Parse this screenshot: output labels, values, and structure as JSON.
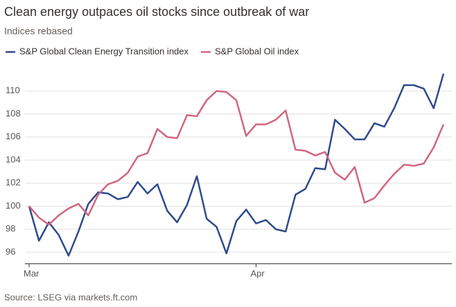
{
  "chart_data": {
    "type": "line",
    "title": "Clean energy outpaces oil stocks since outbreak of war",
    "subtitle": "Indices rebased",
    "source": "Source: LSEG via markets.ft.com",
    "categories": [
      "Mar",
      null,
      null,
      null,
      null,
      null,
      null,
      null,
      null,
      null,
      null,
      null,
      null,
      null,
      null,
      null,
      null,
      null,
      null,
      null,
      null,
      null,
      null,
      "Apr",
      null,
      null,
      null,
      null,
      null,
      null,
      null,
      null,
      null,
      null,
      null,
      null,
      null,
      null,
      null,
      null,
      null,
      null,
      null
    ],
    "series": [
      {
        "name": "S&P Global Clean Energy Transition index",
        "color": "#2e4a8c",
        "values": [
          100,
          97,
          98.6,
          97.5,
          95.7,
          97.8,
          100.2,
          101.2,
          101.1,
          100.6,
          100.8,
          102.1,
          101.1,
          101.9,
          99.6,
          98.6,
          100.1,
          102.6,
          98.9,
          98.2,
          95.9,
          98.7,
          99.7,
          98.5,
          98.8,
          98,
          97.8,
          101,
          101.5,
          103.3,
          103.2,
          107.5,
          106.7,
          105.8,
          105.8,
          107.2,
          106.9,
          108.5,
          110.5,
          110.5,
          110.2,
          108.5,
          111.5
        ]
      },
      {
        "name": "S&P Global Oil index",
        "color": "#d0667f",
        "values": [
          100,
          99,
          98.4,
          99.2,
          99.8,
          100.2,
          99.2,
          101,
          101.9,
          102.2,
          102.9,
          104.3,
          104.6,
          106.7,
          106,
          105.9,
          107.9,
          107.8,
          109.2,
          110,
          109.9,
          109.2,
          106.1,
          107.1,
          107.1,
          107.5,
          108.3,
          104.9,
          104.8,
          104.4,
          104.7,
          102.9,
          102.3,
          103.4,
          100.3,
          100.7,
          101.8,
          102.8,
          103.6,
          103.5,
          103.7,
          105.1,
          107.1
        ]
      }
    ],
    "ylim": [
      95,
      112
    ],
    "yticks": [
      96,
      98,
      100,
      102,
      104,
      106,
      108,
      110
    ],
    "grid": true
  }
}
